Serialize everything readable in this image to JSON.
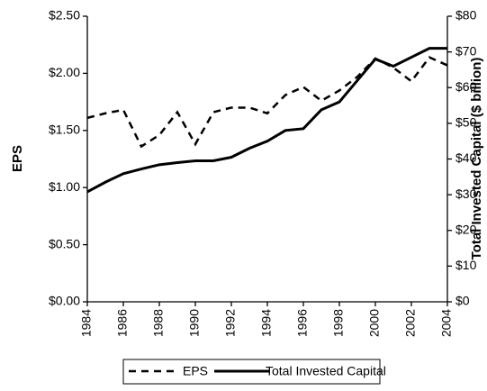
{
  "chart_data": {
    "type": "line",
    "y_label": "EPS",
    "y2_label": "Total Invested Capital ($ billion)",
    "x": [
      1984,
      1985,
      1986,
      1987,
      1988,
      1989,
      1990,
      1991,
      1992,
      1993,
      1994,
      1995,
      1996,
      1997,
      1998,
      1999,
      2000,
      2001,
      2002,
      2003,
      2004
    ],
    "xlim": [
      1984,
      2004
    ],
    "xticks": [
      1984,
      1986,
      1988,
      1990,
      1992,
      1994,
      1996,
      1998,
      2000,
      2002,
      2004
    ],
    "ylim": [
      0,
      2.5
    ],
    "yticks": [
      {
        "value": 0,
        "label": "$0.00"
      },
      {
        "value": 0.5,
        "label": "$0.50"
      },
      {
        "value": 1,
        "label": "$1.00"
      },
      {
        "value": 1.5,
        "label": "$1.50"
      },
      {
        "value": 2,
        "label": "$2.00"
      },
      {
        "value": 2.5,
        "label": "$2.50"
      }
    ],
    "y2lim": [
      0,
      80
    ],
    "y2ticks": [
      {
        "value": 0,
        "label": "$0"
      },
      {
        "value": 10,
        "label": "$10"
      },
      {
        "value": 20,
        "label": "$20"
      },
      {
        "value": 30,
        "label": "$30"
      },
      {
        "value": 40,
        "label": "$40"
      },
      {
        "value": 50,
        "label": "$50"
      },
      {
        "value": 60,
        "label": "$60"
      },
      {
        "value": 70,
        "label": "$70"
      },
      {
        "value": 80,
        "label": "$80"
      }
    ],
    "grid": false,
    "legend": "bottom",
    "series": [
      {
        "name": "EPS",
        "color": "#000000",
        "line_style": "dashed",
        "values": [
          1.61,
          1.65,
          1.68,
          1.36,
          1.46,
          1.66,
          1.38,
          1.66,
          1.7,
          1.7,
          1.65,
          1.81,
          1.88,
          1.76,
          1.85,
          1.97,
          2.13,
          2.05,
          1.93,
          2.14,
          2.07
        ]
      },
      {
        "name": "Total Invested Capital",
        "color": "#000000",
        "line_style": "solid",
        "axis": "y2",
        "values": [
          30.8,
          33.5,
          35.9,
          37.2,
          38.4,
          39.0,
          39.5,
          39.5,
          40.5,
          43.0,
          45.0,
          48.0,
          48.5,
          53.8,
          56.0,
          62.0,
          68.0,
          66.0,
          68.5,
          71.0,
          71.0
        ]
      }
    ]
  }
}
